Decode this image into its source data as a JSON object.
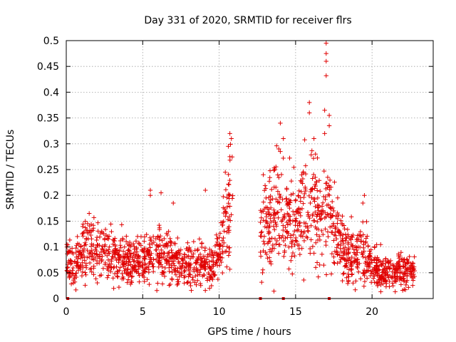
{
  "chart_data": {
    "type": "scatter",
    "title": "Day 331 of 2020, SRMTID for receiver flrs",
    "xlabel": "GPS time / hours",
    "ylabel": "SRMTID / TECUs",
    "xlim": [
      0,
      24
    ],
    "ylim": [
      0,
      0.5
    ],
    "x_ticks": [
      0,
      5,
      10,
      15,
      20
    ],
    "y_ticks": [
      0,
      0.05,
      0.1,
      0.15,
      0.2,
      0.25,
      0.3,
      0.35,
      0.4,
      0.45,
      0.5
    ],
    "x_tick_labels": [
      "0",
      "5",
      "10",
      "15",
      "20"
    ],
    "y_tick_labels": [
      "0",
      "0.05",
      "0.1",
      "0.15",
      "0.2",
      "0.25",
      "0.3",
      "0.35",
      "0.4",
      "0.45",
      "0.5"
    ],
    "grid": true,
    "marker": "+",
    "color": "#e00000",
    "zero_line_markers_x": [
      0.1,
      12.7,
      14.2,
      17.2
    ],
    "trend": [
      [
        0.0,
        0.075
      ],
      [
        0.5,
        0.06
      ],
      [
        1.0,
        0.085
      ],
      [
        1.5,
        0.105
      ],
      [
        2.0,
        0.085
      ],
      [
        2.5,
        0.09
      ],
      [
        3.0,
        0.08
      ],
      [
        3.5,
        0.078
      ],
      [
        4.0,
        0.075
      ],
      [
        4.5,
        0.07
      ],
      [
        5.0,
        0.075
      ],
      [
        5.5,
        0.085
      ],
      [
        6.0,
        0.09
      ],
      [
        6.5,
        0.08
      ],
      [
        7.0,
        0.075
      ],
      [
        7.5,
        0.065
      ],
      [
        8.0,
        0.065
      ],
      [
        8.5,
        0.07
      ],
      [
        9.0,
        0.065
      ],
      [
        9.5,
        0.06
      ],
      [
        10.0,
        0.09
      ],
      [
        10.5,
        0.15
      ],
      [
        10.9,
        0.2
      ],
      [
        12.7,
        0.14
      ],
      [
        13.2,
        0.16
      ],
      [
        13.7,
        0.17
      ],
      [
        14.2,
        0.16
      ],
      [
        14.7,
        0.15
      ],
      [
        15.2,
        0.16
      ],
      [
        15.7,
        0.17
      ],
      [
        16.2,
        0.17
      ],
      [
        16.7,
        0.18
      ],
      [
        17.2,
        0.16
      ],
      [
        17.7,
        0.12
      ],
      [
        18.2,
        0.09
      ],
      [
        18.7,
        0.085
      ],
      [
        19.2,
        0.095
      ],
      [
        19.7,
        0.08
      ],
      [
        20.2,
        0.065
      ],
      [
        20.7,
        0.05
      ],
      [
        21.2,
        0.05
      ],
      [
        21.7,
        0.055
      ],
      [
        22.2,
        0.055
      ],
      [
        22.8,
        0.055
      ]
    ],
    "outliers": [
      [
        17.0,
        0.495
      ],
      [
        17.0,
        0.475
      ],
      [
        17.0,
        0.46
      ],
      [
        17.0,
        0.432
      ],
      [
        16.9,
        0.365
      ],
      [
        17.2,
        0.355
      ],
      [
        17.2,
        0.335
      ],
      [
        16.9,
        0.32
      ],
      [
        15.9,
        0.38
      ],
      [
        15.9,
        0.36
      ],
      [
        16.2,
        0.31
      ],
      [
        16.3,
        0.28
      ],
      [
        14.0,
        0.34
      ],
      [
        14.2,
        0.31
      ],
      [
        13.9,
        0.29
      ],
      [
        14.0,
        0.285
      ],
      [
        10.7,
        0.32
      ],
      [
        10.8,
        0.31
      ],
      [
        10.6,
        0.295
      ],
      [
        10.7,
        0.275
      ],
      [
        5.5,
        0.21
      ],
      [
        5.5,
        0.2
      ],
      [
        6.2,
        0.205
      ],
      [
        7.0,
        0.185
      ],
      [
        9.1,
        0.21
      ],
      [
        19.5,
        0.2
      ],
      [
        19.4,
        0.185
      ],
      [
        1.5,
        0.165
      ]
    ]
  }
}
